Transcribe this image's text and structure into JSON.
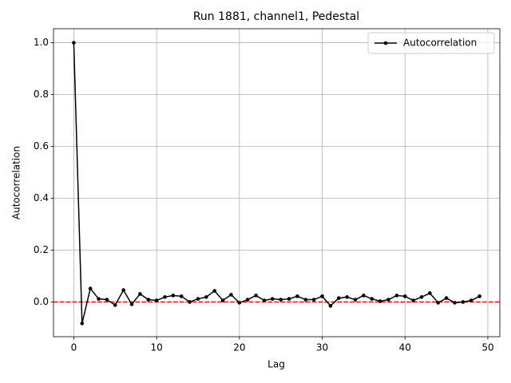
{
  "chart_data": {
    "type": "line",
    "title": "Run 1881, channel1, Pedestal",
    "xlabel": "Lag",
    "ylabel": "Autocorrelation",
    "x": [
      0,
      1,
      2,
      3,
      4,
      5,
      6,
      7,
      8,
      9,
      10,
      11,
      12,
      13,
      14,
      15,
      16,
      17,
      18,
      19,
      20,
      21,
      22,
      23,
      24,
      25,
      26,
      27,
      28,
      29,
      30,
      31,
      32,
      33,
      34,
      35,
      36,
      37,
      38,
      39,
      40,
      41,
      42,
      43,
      44,
      45,
      46,
      47,
      48,
      49
    ],
    "series": [
      {
        "name": "Autocorrelation",
        "color": "#000000",
        "values": [
          1.0,
          -0.083,
          0.052,
          0.012,
          0.009,
          -0.012,
          0.046,
          -0.009,
          0.031,
          0.009,
          0.006,
          0.019,
          0.025,
          0.022,
          0.0,
          0.012,
          0.019,
          0.043,
          0.006,
          0.028,
          -0.003,
          0.009,
          0.025,
          0.006,
          0.012,
          0.009,
          0.012,
          0.022,
          0.009,
          0.009,
          0.022,
          -0.015,
          0.015,
          0.019,
          0.009,
          0.025,
          0.012,
          0.003,
          0.009,
          0.025,
          0.022,
          0.006,
          0.019,
          0.034,
          -0.003,
          0.015,
          -0.003,
          0.0,
          0.006,
          0.022
        ]
      }
    ],
    "hline": {
      "value": 0,
      "color": "#ff0000",
      "style": "dashed"
    },
    "xlim": [
      -2.45,
      51.45
    ],
    "xticks": [
      0,
      10,
      20,
      30,
      40,
      50
    ],
    "ylim": [
      -0.134,
      1.054
    ],
    "yticks": [
      {
        "value": 0,
        "label": "0.0"
      },
      {
        "value": 0.2,
        "label": "0.2"
      },
      {
        "value": 0.4,
        "label": "0.4"
      },
      {
        "value": 0.6,
        "label": "0.6"
      },
      {
        "value": 0.8,
        "label": "0.8"
      },
      {
        "value": 1.0,
        "label": "1.0"
      }
    ],
    "grid": true,
    "legend": "upper right"
  }
}
